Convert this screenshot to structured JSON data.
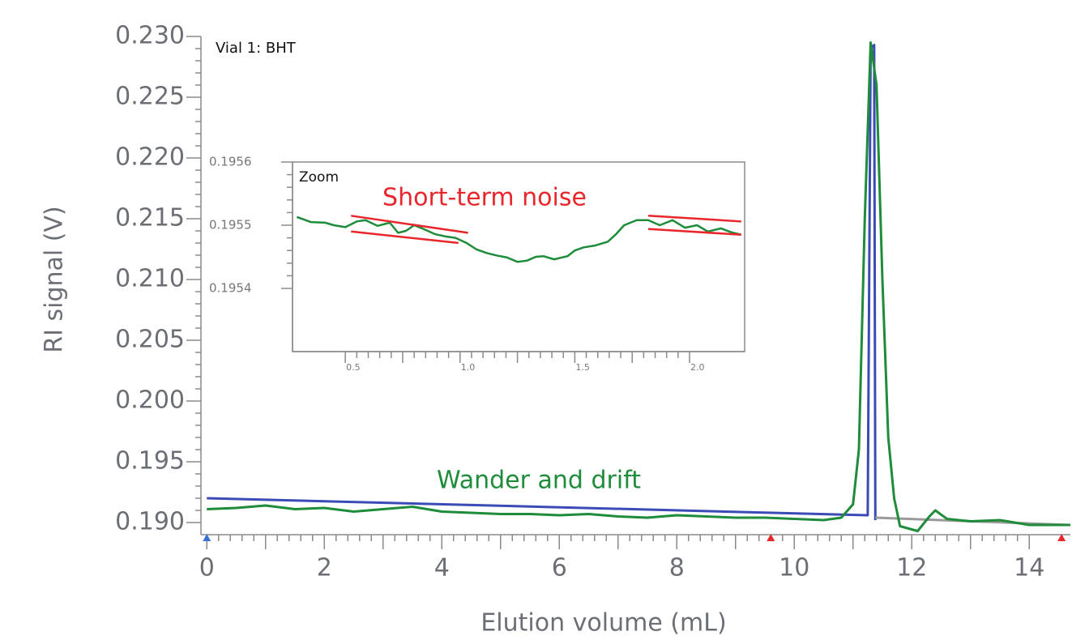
{
  "chart_data": [
    {
      "type": "line",
      "title": "Vial 1: BHT",
      "annotation": "Wander and drift",
      "xlabel": "Elution volume (mL)",
      "ylabel": "RI signal (V)",
      "xlim": [
        -0.1,
        14.7
      ],
      "ylim": [
        0.189,
        0.23
      ],
      "xticks": [
        0,
        2,
        4,
        6,
        8,
        10,
        12,
        14
      ],
      "yticks": [
        {
          "value": 0.19,
          "label": "0.190"
        },
        0.195,
        {
          "value": 0.2,
          "label": "0.200"
        },
        0.205,
        {
          "value": 0.21,
          "label": "0.210"
        },
        0.215,
        {
          "value": 0.22,
          "label": "0.220"
        },
        0.225,
        {
          "value": 0.23,
          "label": "0.230"
        }
      ],
      "series": [
        {
          "color": "#3b4bb5",
          "x": [
            0,
            11.25,
            11.3,
            11.36,
            11.38
          ],
          "values": [
            0.192,
            0.1906,
            0.229,
            0.2293,
            0.1902
          ]
        },
        {
          "color": "#9a9a9a",
          "x": [
            11.38,
            14.7
          ],
          "values": [
            0.1904,
            0.1898
          ]
        },
        {
          "color": "#1e8c3a",
          "x": [
            0,
            0.5,
            1,
            1.5,
            2,
            2.5,
            3,
            3.5,
            4,
            4.5,
            5,
            5.5,
            6,
            6.5,
            7,
            7.5,
            8,
            8.5,
            9,
            9.5,
            10,
            10.5,
            10.8,
            11.0,
            11.1,
            11.2,
            11.3,
            11.4,
            11.5,
            11.6,
            11.7,
            11.8,
            12.1,
            12.3,
            12.4,
            12.6,
            13,
            13.5,
            14,
            14.7
          ],
          "values": [
            0.1911,
            0.1912,
            0.1914,
            0.1911,
            0.1912,
            0.1909,
            0.1911,
            0.1913,
            0.1909,
            0.1908,
            0.1907,
            0.1907,
            0.1906,
            0.1907,
            0.1905,
            0.1904,
            0.1906,
            0.1905,
            0.1904,
            0.1904,
            0.1903,
            0.1902,
            0.1904,
            0.1915,
            0.196,
            0.215,
            0.2295,
            0.226,
            0.21,
            0.197,
            0.192,
            0.1897,
            0.1893,
            0.1905,
            0.191,
            0.1903,
            0.1901,
            0.1902,
            0.1898,
            0.1898
          ]
        }
      ],
      "markers": {
        "x": [
          0,
          9.6,
          14.55
        ],
        "colors": [
          "#3b6fd4",
          "#e8262b",
          "#e8262b"
        ]
      }
    },
    {
      "type": "line",
      "title": "Zoom",
      "annotation": "Short-term noise",
      "xlim": [
        0.27,
        2.24
      ],
      "ylim": [
        0.1953,
        0.1956
      ],
      "xticks": [
        0.5,
        {
          "value": 1.0,
          "label": "1.0"
        },
        1.5,
        {
          "value": 2.0,
          "label": "2.0"
        }
      ],
      "yticks": [
        0.1954,
        0.1955,
        0.1956
      ],
      "series": [
        {
          "color": "#1e8c3a",
          "x": [
            0.289,
            0.35,
            0.412,
            0.45,
            0.5,
            0.55,
            0.588,
            0.64,
            0.694,
            0.73,
            0.764,
            0.8,
            0.835,
            0.89,
            0.94,
            0.98,
            1.028,
            1.07,
            1.116,
            1.16,
            1.204,
            1.25,
            1.292,
            1.33,
            1.363,
            1.41,
            1.468,
            1.5,
            1.539,
            1.59,
            1.644,
            1.68,
            1.715,
            1.77,
            1.82,
            1.87,
            1.926,
            1.98,
            2.032,
            2.08,
            2.137,
            2.18,
            2.225
          ],
          "values": [
            0.195513,
            0.195505,
            0.195504,
            0.1955,
            0.195497,
            0.195506,
            0.195508,
            0.195499,
            0.195504,
            0.195488,
            0.195491,
            0.1955,
            0.195495,
            0.195486,
            0.195482,
            0.19548,
            0.195472,
            0.195462,
            0.195456,
            0.195452,
            0.195449,
            0.195442,
            0.195444,
            0.19545,
            0.195451,
            0.195446,
            0.195451,
            0.19546,
            0.195465,
            0.195468,
            0.195474,
            0.195486,
            0.1955,
            0.195508,
            0.195508,
            0.1955,
            0.195508,
            0.195496,
            0.1955,
            0.19549,
            0.195495,
            0.195489,
            0.195485
          ]
        },
        {
          "color": "#e8262b",
          "x": [
            0.525,
            1.035
          ],
          "values": [
            0.195515,
            0.195488
          ]
        },
        {
          "color": "#e8262b",
          "x": [
            0.525,
            0.993
          ],
          "values": [
            0.19549,
            0.195472
          ]
        },
        {
          "color": "#e8262b",
          "x": [
            1.82,
            2.225
          ],
          "values": [
            0.195515,
            0.195506
          ]
        },
        {
          "color": "#e8262b",
          "x": [
            1.82,
            2.225
          ],
          "values": [
            0.195494,
            0.195485
          ]
        }
      ]
    }
  ]
}
